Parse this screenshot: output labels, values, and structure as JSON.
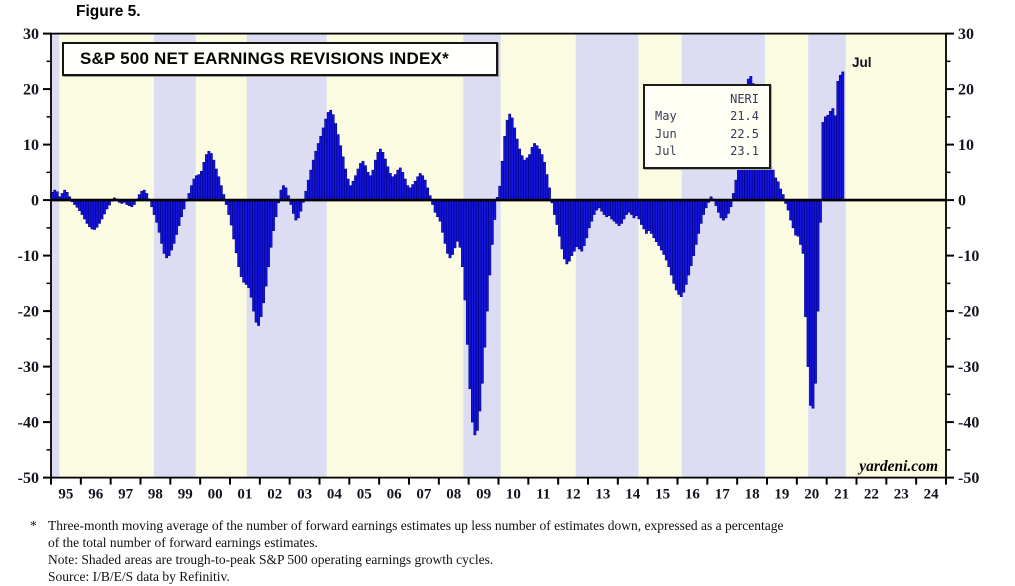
{
  "figure_label": "Figure 5.",
  "title": "S&P 500 NET EARNINGS REVISIONS INDEX*",
  "annotations": {
    "last_point_label": "Jul",
    "brand": "yardeni.com"
  },
  "info_box": {
    "header": "NERI",
    "rows": [
      {
        "month": "May",
        "value": "21.4"
      },
      {
        "month": "Jun",
        "value": "22.5"
      },
      {
        "month": "Jul",
        "value": "23.1"
      }
    ]
  },
  "footnotes": {
    "marker": "*",
    "lines": [
      "Three-month moving average of the number of forward earnings estimates up less number of estimates down, expressed as a percentage",
      "of the total number of forward earnings estimates.",
      "Note: Shaded areas are trough-to-peak S&P 500 operating earnings growth cycles.",
      "Source: I/B/E/S data by Refinitiv."
    ]
  },
  "chart_data": {
    "type": "bar",
    "title": "S&P 500 NET EARNINGS REVISIONS INDEX*",
    "unit": "percent",
    "frequency": "monthly",
    "start": "1995-01",
    "end": "2021-07",
    "ylim": [
      -50,
      30
    ],
    "y_major_ticks": [
      30,
      20,
      10,
      0,
      -10,
      -20,
      -30,
      -40,
      -50
    ],
    "y_tick_labels": [
      "30",
      "20",
      "10",
      "0",
      "-10",
      "-20",
      "-30",
      "-40",
      "-50"
    ],
    "y_minor_step": 5,
    "x_range": [
      1995,
      2025
    ],
    "x_tick_labels": [
      "95",
      "96",
      "97",
      "98",
      "99",
      "00",
      "01",
      "02",
      "03",
      "04",
      "05",
      "06",
      "07",
      "08",
      "09",
      "10",
      "11",
      "12",
      "13",
      "14",
      "15",
      "16",
      "17",
      "18",
      "19",
      "20",
      "21",
      "22",
      "23",
      "24"
    ],
    "legend": "none",
    "grid": "off",
    "shading_note": "trough-to-peak S&P 500 operating earnings growth cycles",
    "shaded_periods": [
      [
        1995.0,
        1995.28
      ],
      [
        1998.45,
        1999.85
      ],
      [
        2001.56,
        2004.24
      ],
      [
        2008.82,
        2010.07
      ],
      [
        2012.59,
        2014.69
      ],
      [
        2016.14,
        2018.93
      ],
      [
        2020.38,
        2021.64
      ]
    ],
    "colors": {
      "plot_background": "#fbfbe1",
      "band": "#dcdcf3",
      "bar": "#1616dd",
      "bar_edge": "#000090",
      "axis": "#000000",
      "label": "#14141f"
    },
    "values": [
      1.4,
      1.8,
      1.5,
      0.6,
      1.2,
      1.8,
      1.4,
      0.6,
      -0.3,
      -0.8,
      -1.3,
      -1.9,
      -2.6,
      -3.4,
      -4.2,
      -4.8,
      -5.2,
      -5.3,
      -4.9,
      -4.2,
      -3.4,
      -2.5,
      -1.6,
      -0.9,
      -0.2,
      0.4,
      0.2,
      -0.4,
      -0.6,
      -0.4,
      -0.8,
      -1.0,
      -1.2,
      -0.8,
      0.2,
      1.0,
      1.6,
      1.8,
      1.2,
      0.2,
      -1.2,
      -2.6,
      -4.0,
      -5.8,
      -7.8,
      -9.6,
      -10.4,
      -10.0,
      -9.0,
      -7.8,
      -6.2,
      -4.6,
      -3.0,
      -1.6,
      -0.2,
      1.2,
      2.6,
      3.8,
      4.4,
      4.6,
      5.2,
      6.8,
      8.2,
      8.8,
      8.4,
      7.2,
      5.6,
      4.2,
      2.6,
      1.0,
      -0.8,
      -2.6,
      -4.5,
      -7.0,
      -9.5,
      -12.0,
      -13.8,
      -14.8,
      -15.2,
      -15.8,
      -17.5,
      -20.0,
      -22.0,
      -22.6,
      -21.0,
      -18.5,
      -15.5,
      -12.0,
      -8.5,
      -5.5,
      -3.0,
      -0.5,
      1.8,
      2.6,
      2.2,
      0.8,
      -0.8,
      -2.4,
      -3.6,
      -3.2,
      -2.0,
      -0.4,
      1.6,
      3.6,
      5.4,
      7.2,
      8.8,
      10.2,
      11.5,
      13.0,
      14.6,
      15.8,
      16.2,
      15.4,
      13.8,
      11.8,
      9.8,
      7.8,
      5.6,
      3.8,
      2.6,
      3.4,
      4.4,
      5.6,
      6.6,
      7.0,
      6.2,
      5.0,
      4.4,
      5.4,
      7.2,
      8.6,
      9.2,
      8.6,
      7.4,
      6.0,
      4.8,
      4.2,
      4.6,
      5.4,
      5.8,
      5.0,
      3.8,
      2.6,
      2.2,
      2.8,
      3.4,
      4.2,
      4.8,
      4.4,
      3.6,
      2.2,
      0.8,
      -0.8,
      -2.2,
      -3.0,
      -3.8,
      -5.8,
      -7.8,
      -9.6,
      -10.4,
      -9.8,
      -8.6,
      -7.4,
      -8.5,
      -12.0,
      -18.0,
      -26.0,
      -34.0,
      -40.0,
      -42.3,
      -41.5,
      -38.0,
      -33.0,
      -26.5,
      -20.0,
      -13.5,
      -8.0,
      -3.5,
      0.5,
      2.5,
      7.0,
      11.5,
      14.4,
      15.5,
      14.8,
      13.0,
      11.0,
      9.2,
      8.0,
      7.2,
      7.6,
      8.2,
      9.5,
      10.2,
      9.8,
      9.2,
      8.2,
      6.8,
      4.6,
      2.2,
      -0.5,
      -2.6,
      -4.4,
      -6.5,
      -8.8,
      -10.6,
      -11.5,
      -11.0,
      -10.0,
      -9.2,
      -8.4,
      -8.8,
      -9.2,
      -8.2,
      -6.8,
      -5.0,
      -3.8,
      -2.6,
      -1.8,
      -1.4,
      -2.0,
      -2.6,
      -3.0,
      -2.8,
      -3.4,
      -3.8,
      -4.2,
      -4.6,
      -4.2,
      -3.4,
      -2.6,
      -2.2,
      -2.6,
      -3.2,
      -2.8,
      -3.4,
      -4.4,
      -5.2,
      -6.0,
      -5.5,
      -6.0,
      -6.8,
      -7.5,
      -8.2,
      -9.0,
      -9.8,
      -10.8,
      -12.0,
      -13.5,
      -15.0,
      -16.2,
      -17.0,
      -17.4,
      -16.6,
      -15.2,
      -13.5,
      -11.8,
      -10.0,
      -8.0,
      -6.0,
      -4.2,
      -2.6,
      -1.4,
      -0.4,
      0.6,
      0.2,
      -1.0,
      -2.2,
      -3.2,
      -3.6,
      -3.2,
      -2.4,
      -1.2,
      1.2,
      3.6,
      5.8,
      6.3,
      6.0,
      13.0,
      21.8,
      22.3,
      21.0,
      16.8,
      14.0,
      12.0,
      10.5,
      9.3,
      7.2,
      6.0,
      5.4,
      4.0,
      3.3,
      2.0,
      1.0,
      -0.6,
      -1.8,
      -3.6,
      -5.0,
      -6.3,
      -6.5,
      -8.0,
      -9.6,
      -21.0,
      -30.0,
      -37.0,
      -37.5,
      -33.0,
      -20.0,
      -4.0,
      14.0,
      15.0,
      15.3,
      16.0,
      16.5,
      15.2,
      21.4,
      22.5,
      23.1
    ]
  }
}
